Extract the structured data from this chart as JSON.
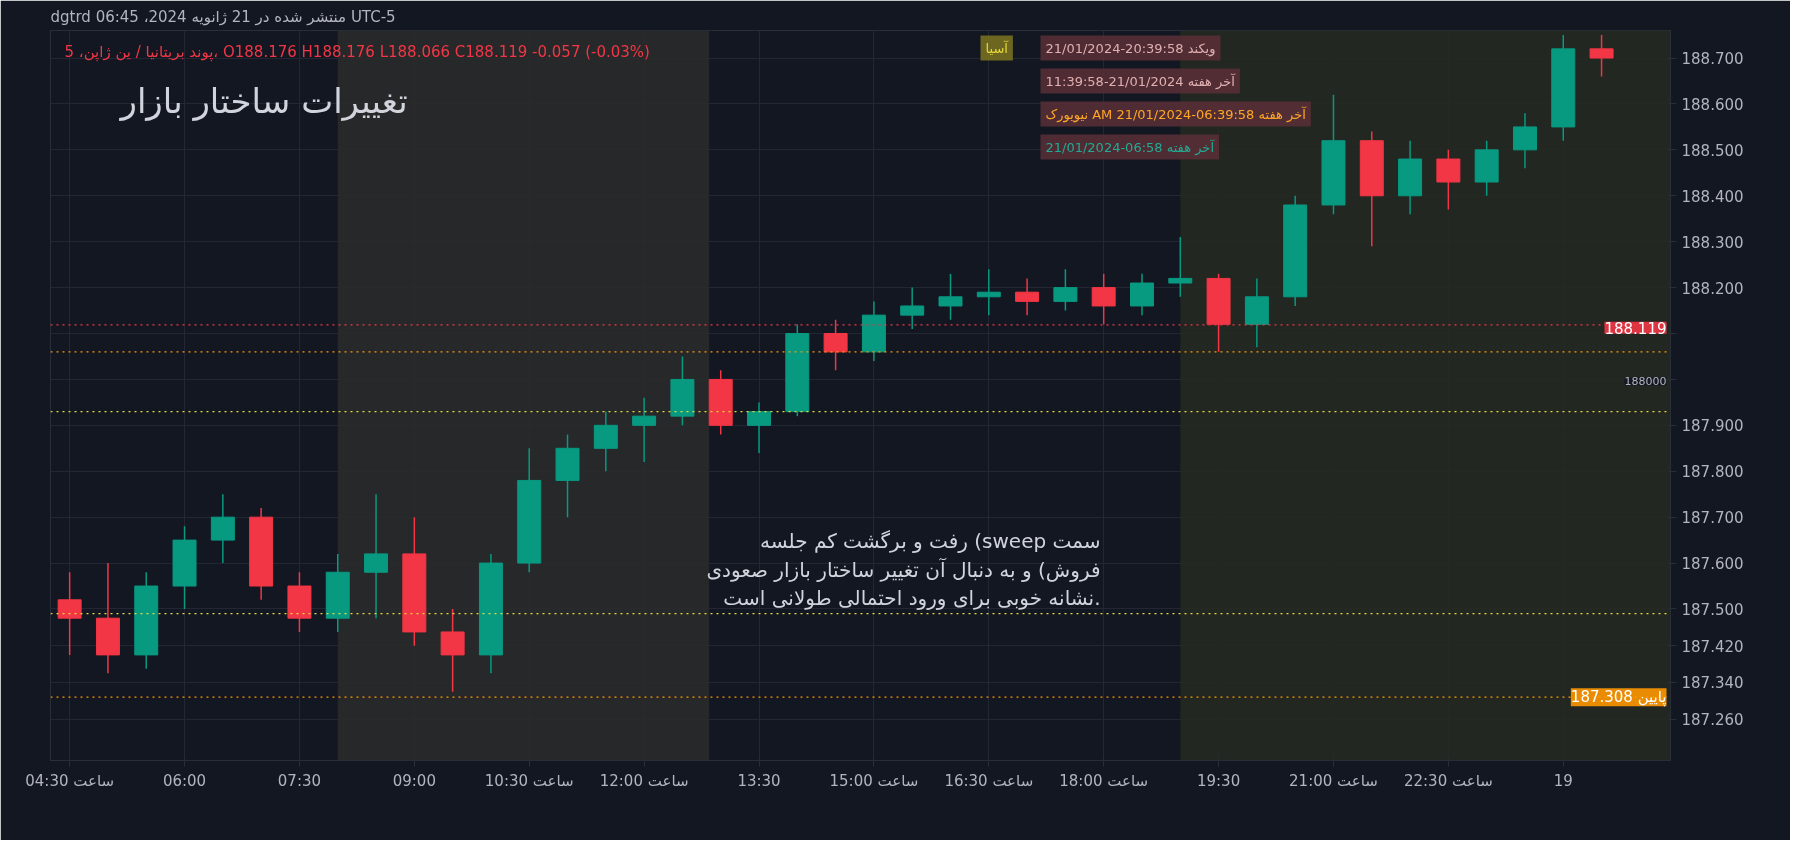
{
  "chart_data": {
    "type": "candlestick",
    "title": "تغییرات ساختار بازار",
    "subtitle": "پوند بریتانیا / ین ژاپن، 5، O188.176 H188.176 L188.066 C188.119 -0.057 (-0.03%)",
    "annotations": [
      "dgtrd منتشر شده در 21 ژانویه 2024، 06:45 UTC-5",
      "رفت و برگشت کم جلسه (sweep سمت\nفروش) و به دنبال آن تغییر ساختار بازار صعودی\nنشانه خوبی برای ورود احتمالی طولانی است.",
      "آسیا",
      "21/01/2024-20:39:58 ویکند",
      "11:39:58-21/01/2024 آخر هفته",
      "نیویورک AM 21/01/2024-06:39:58 آخر هفته",
      "21/01/2024-06:58 آخر هفته",
      {
        "text": "188000",
        "x": "2024-01-19T01:24",
        "y": 188.0
      }
    ],
    "x": [
      "2024-01-18T04:30",
      "2024-01-18T05:00",
      "2024-01-18T05:30",
      "2024-01-18T06:00",
      "2024-01-18T06:30",
      "2024-01-18T07:00",
      "2024-01-18T07:30",
      "2024-01-18T08:00",
      "2024-01-18T08:30",
      "2024-01-18T09:00",
      "2024-01-18T09:30",
      "2024-01-18T10:00",
      "2024-01-18T10:30",
      "2024-01-18T11:00",
      "2024-01-18T11:30",
      "2024-01-18T12:00",
      "2024-01-18T12:30",
      "2024-01-18T13:00",
      "2024-01-18T13:30",
      "2024-01-18T14:00",
      "2024-01-18T14:30",
      "2024-01-18T15:00",
      "2024-01-18T15:30",
      "2024-01-18T16:00",
      "2024-01-18T16:30",
      "2024-01-18T17:00",
      "2024-01-18T17:30",
      "2024-01-18T18:00",
      "2024-01-18T18:30",
      "2024-01-18T19:00",
      "2024-01-18T19:30",
      "2024-01-18T20:00",
      "2024-01-18T20:30",
      "2024-01-18T21:00",
      "2024-01-18T21:30",
      "2024-01-18T22:00",
      "2024-01-18T22:30",
      "2024-01-18T23:00",
      "2024-01-18T23:30",
      "2024-01-19T00:00",
      "2024-01-19T00:30"
    ],
    "ohlc": [
      [
        187.52,
        187.58,
        187.4,
        187.48
      ],
      [
        187.48,
        187.6,
        187.36,
        187.4
      ],
      [
        187.4,
        187.58,
        187.37,
        187.55
      ],
      [
        187.55,
        187.68,
        187.5,
        187.65
      ],
      [
        187.65,
        187.75,
        187.6,
        187.7
      ],
      [
        187.7,
        187.72,
        187.52,
        187.55
      ],
      [
        187.55,
        187.58,
        187.45,
        187.48
      ],
      [
        187.48,
        187.62,
        187.45,
        187.58
      ],
      [
        187.58,
        187.75,
        187.48,
        187.62
      ],
      [
        187.62,
        187.7,
        187.42,
        187.45
      ],
      [
        187.45,
        187.5,
        187.32,
        187.4
      ],
      [
        187.4,
        187.62,
        187.36,
        187.6
      ],
      [
        187.6,
        187.85,
        187.58,
        187.78
      ],
      [
        187.78,
        187.88,
        187.7,
        187.85
      ],
      [
        187.85,
        187.93,
        187.8,
        187.9
      ],
      [
        187.9,
        187.96,
        187.82,
        187.92
      ],
      [
        187.92,
        188.05,
        187.9,
        188.0
      ],
      [
        188.0,
        188.02,
        187.88,
        187.9
      ],
      [
        187.9,
        187.95,
        187.84,
        187.93
      ],
      [
        187.93,
        188.12,
        187.92,
        188.1
      ],
      [
        188.1,
        188.13,
        188.02,
        188.06
      ],
      [
        188.06,
        188.17,
        188.04,
        188.14
      ],
      [
        188.14,
        188.2,
        188.11,
        188.16
      ],
      [
        188.16,
        188.23,
        188.13,
        188.18
      ],
      [
        188.18,
        188.24,
        188.14,
        188.19
      ],
      [
        188.19,
        188.22,
        188.14,
        188.17
      ],
      [
        188.17,
        188.24,
        188.15,
        188.2
      ],
      [
        188.2,
        188.23,
        188.12,
        188.16
      ],
      [
        188.16,
        188.23,
        188.14,
        188.21
      ],
      [
        188.21,
        188.31,
        188.18,
        188.22
      ],
      [
        188.22,
        188.23,
        188.06,
        188.12
      ],
      [
        188.12,
        188.22,
        188.07,
        188.18
      ],
      [
        188.18,
        188.4,
        188.16,
        188.38
      ],
      [
        188.38,
        188.62,
        188.36,
        188.52
      ],
      [
        188.52,
        188.54,
        188.29,
        188.4
      ],
      [
        188.4,
        188.52,
        188.36,
        188.48
      ],
      [
        188.48,
        188.5,
        188.37,
        188.43
      ],
      [
        188.43,
        188.52,
        188.4,
        188.5
      ],
      [
        188.5,
        188.58,
        188.46,
        188.55
      ],
      [
        188.55,
        188.75,
        188.52,
        188.72
      ],
      [
        188.72,
        188.75,
        188.66,
        188.7
      ]
    ],
    "xlim": [
      "2024-01-18T04:15",
      "2024-01-19T01:24"
    ],
    "xticks": [
      {
        "value": "2024-01-18T04:30",
        "label": "04:30 ساعت"
      },
      {
        "value": "2024-01-18T06:00",
        "label": "06:00"
      },
      {
        "value": "2024-01-18T07:30",
        "label": "07:30"
      },
      {
        "value": "2024-01-18T09:00",
        "label": "09:00"
      },
      {
        "value": "2024-01-18T10:30",
        "label": "10:30 ساعت"
      },
      {
        "value": "2024-01-18T12:00",
        "label": "12:00 ساعت"
      },
      {
        "value": "2024-01-18T13:30",
        "label": "13:30"
      },
      {
        "value": "2024-01-18T15:00",
        "label": "15:00 ساعت"
      },
      {
        "value": "2024-01-18T16:30",
        "label": "16:30 ساعت"
      },
      {
        "value": "2024-01-18T18:00",
        "label": "18:00 ساعت"
      },
      {
        "value": "2024-01-18T19:30",
        "label": "19:30"
      },
      {
        "value": "2024-01-18T21:00",
        "label": "21:00 ساعت"
      },
      {
        "value": "2024-01-18T22:30",
        "label": "22:30 ساعت"
      },
      {
        "value": "2024-01-19",
        "label": "19"
      }
    ],
    "ylim": [
      187.17,
      188.76
    ],
    "yticks": [
      {
        "value": 187.26,
        "label": "187.260"
      },
      {
        "value": 187.34,
        "label": "187.340"
      },
      {
        "value": 187.42,
        "label": "187.420"
      },
      {
        "value": 187.5,
        "label": "187.500"
      },
      {
        "value": 187.6,
        "label": "187.600"
      },
      {
        "value": 187.7,
        "label": "187.700"
      },
      {
        "value": 187.8,
        "label": "187.800"
      },
      {
        "value": 187.9,
        "label": "187.900"
      },
      {
        "value": 188.0,
        "label": null
      },
      {
        "value": 188.1,
        "label": null
      },
      {
        "value": 188.2,
        "label": "188.200"
      },
      {
        "value": 188.3,
        "label": "188.300"
      },
      {
        "value": 188.4,
        "label": "188.400"
      },
      {
        "value": 188.5,
        "label": "188.500"
      },
      {
        "value": 188.6,
        "label": "188.600"
      },
      {
        "value": 188.7,
        "label": "188.700"
      }
    ],
    "ref_lines": [
      {
        "axis": "y",
        "value": 188.119,
        "label": "188.119",
        "color": "#f23645",
        "line_style": "dotted"
      },
      {
        "axis": "y",
        "value": 187.308,
        "label": "پایین 187.308",
        "color": "#ff9800",
        "line_style": "dotted"
      },
      {
        "axis": "y",
        "value": 187.49,
        "label": null,
        "color": "#e6d93a",
        "line_style": "dotted"
      },
      {
        "axis": "y",
        "value": 187.93,
        "label": null,
        "color": "#e6d93a",
        "line_style": "dotted"
      },
      {
        "axis": "y",
        "value": 188.06,
        "label": null,
        "color": "#ff9800",
        "line_style": "dotted"
      }
    ],
    "bands": [
      {
        "axis": "x",
        "from": "2024-01-18T08:00",
        "to": "2024-01-18T12:51",
        "label": null,
        "color": "#2b2b2b"
      },
      {
        "axis": "x",
        "from": "2024-01-18T19:00",
        "to": "2024-01-19T01:24",
        "label": null,
        "color": "#262a22"
      }
    ],
    "grid": true
  }
}
